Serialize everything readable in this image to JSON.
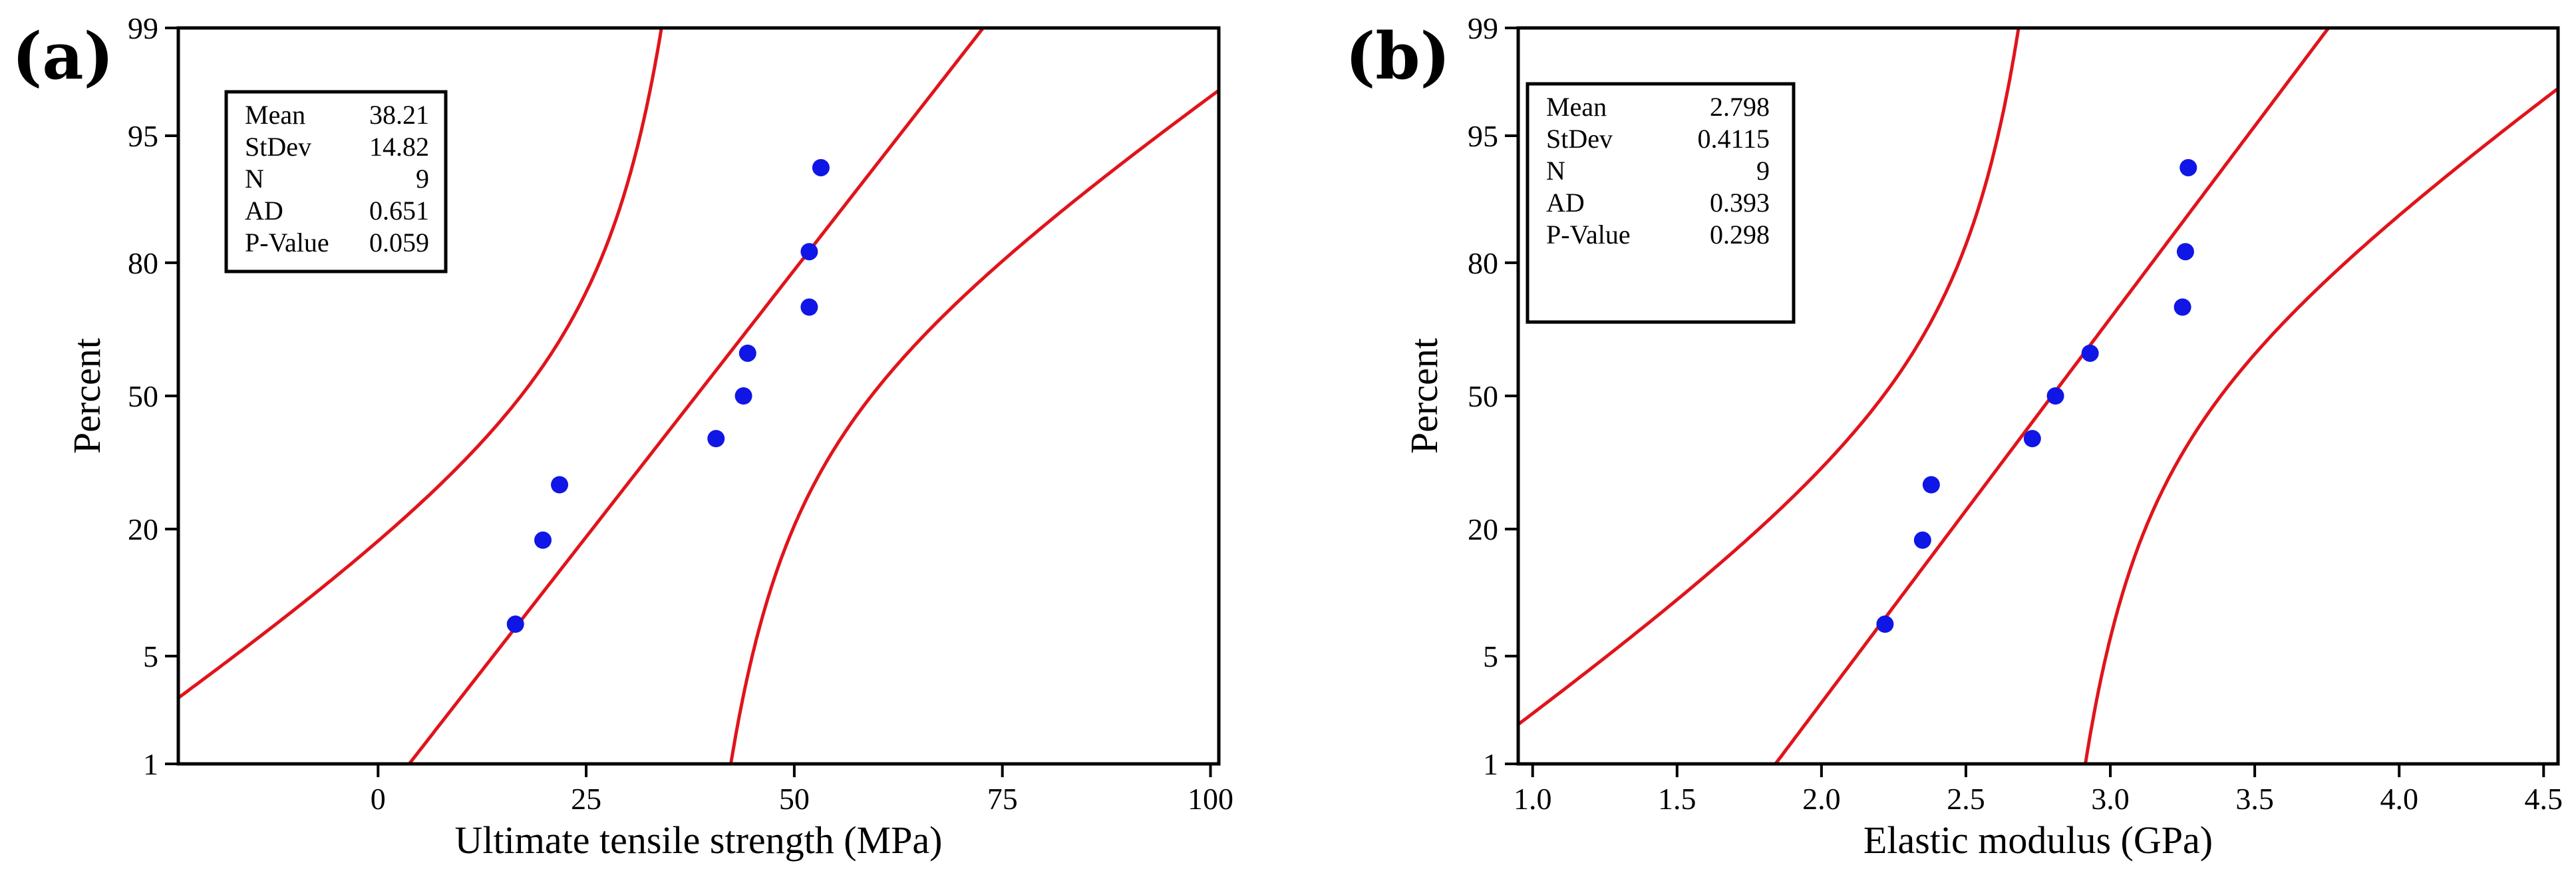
{
  "chart_data": [
    {
      "type": "scatter",
      "plot_kind": "normal-probability",
      "panel_label": "(a)",
      "xlabel": "Ultimate tensile strength (MPa)",
      "ylabel": "Percent",
      "xlim": [
        -24,
        101
      ],
      "x_ticks": [
        0,
        25,
        50,
        75,
        100
      ],
      "x_tick_labels": [
        "0",
        "25",
        "50",
        "75",
        "100"
      ],
      "y_ticks": [
        1,
        5,
        20,
        50,
        80,
        95,
        99
      ],
      "y_tick_labels": [
        "1",
        "5",
        "20",
        "50",
        "80",
        "95",
        "99"
      ],
      "points": [
        {
          "x": 16.5,
          "percent": 7.45
        },
        {
          "x": 19.8,
          "percent": 18.09
        },
        {
          "x": 21.8,
          "percent": 28.72
        },
        {
          "x": 40.6,
          "percent": 39.36
        },
        {
          "x": 43.9,
          "percent": 50.0
        },
        {
          "x": 44.4,
          "percent": 60.64
        },
        {
          "x": 51.8,
          "percent": 71.28
        },
        {
          "x": 51.8,
          "percent": 81.91
        },
        {
          "x": 53.2,
          "percent": 92.55
        }
      ],
      "fit": {
        "mean": 38.21,
        "sd": 14.82
      },
      "ci_width": [
        1.42,
        0.94
      ],
      "stats": [
        {
          "label": "Mean",
          "value": "38.21"
        },
        {
          "label": "StDev",
          "value": "14.82"
        },
        {
          "label": "N",
          "value": "9"
        },
        {
          "label": "AD",
          "value": "0.651"
        },
        {
          "label": "P-Value",
          "value": "0.059"
        }
      ]
    },
    {
      "type": "scatter",
      "plot_kind": "normal-probability",
      "panel_label": "(b)",
      "xlabel": "Elastic modulus (GPa)",
      "ylabel": "Percent",
      "xlim": [
        0.95,
        4.55
      ],
      "x_ticks": [
        1.0,
        1.5,
        2.0,
        2.5,
        3.0,
        3.5,
        4.0,
        4.5
      ],
      "x_tick_labels": [
        "1.0",
        "1.5",
        "2.0",
        "2.5",
        "3.0",
        "3.5",
        "4.0",
        "4.5"
      ],
      "y_ticks": [
        1,
        5,
        20,
        50,
        80,
        95,
        99
      ],
      "y_tick_labels": [
        "1",
        "5",
        "20",
        "50",
        "80",
        "95",
        "99"
      ],
      "points": [
        {
          "x": 2.22,
          "percent": 7.45
        },
        {
          "x": 2.35,
          "percent": 18.09
        },
        {
          "x": 2.38,
          "percent": 28.72
        },
        {
          "x": 2.73,
          "percent": 39.36
        },
        {
          "x": 2.81,
          "percent": 50.0
        },
        {
          "x": 2.93,
          "percent": 60.64
        },
        {
          "x": 3.25,
          "percent": 71.28
        },
        {
          "x": 3.26,
          "percent": 81.91
        },
        {
          "x": 3.27,
          "percent": 92.55
        }
      ],
      "fit": {
        "mean": 2.798,
        "sd": 0.4115
      },
      "ci_width": [
        1.42,
        0.94
      ],
      "stats": [
        {
          "label": "Mean",
          "value": "2.798"
        },
        {
          "label": "StDev",
          "value": "0.4115"
        },
        {
          "label": "N",
          "value": "9"
        },
        {
          "label": "AD",
          "value": "0.393"
        },
        {
          "label": "P-Value",
          "value": "0.298"
        }
      ]
    }
  ]
}
